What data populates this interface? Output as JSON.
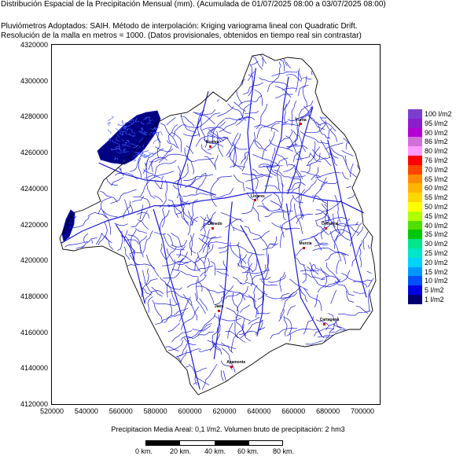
{
  "header": {
    "line1": "Distribución Espacial de la Precipitación Mensual (mm). (Acumulada de 01/07/2025 08:00 a 03/07/2025 08:00)",
    "line2": "Pluviómetros Adoptados: SAIH.  Método de interpolación: Kriging variograma lineal con Quadratic Drift.",
    "line3": "Resolución de la malla en metros = 1000. (Datos provisionales, obtenidos en tiempo real sin contrastar)"
  },
  "axes": {
    "y_ticks": [
      "4320000",
      "4300000",
      "4280000",
      "4260000",
      "4240000",
      "4220000",
      "4200000",
      "4180000",
      "4160000",
      "4140000",
      "4120000"
    ],
    "x_ticks": [
      "520000",
      "540000",
      "560000",
      "580000",
      "600000",
      "620000",
      "640000",
      "660000",
      "680000",
      "700000"
    ]
  },
  "cities": [
    {
      "name": "Huelva",
      "x": 612000,
      "y": 4263500
    },
    {
      "name": "Yunta",
      "x": 664000,
      "y": 4276000
    },
    {
      "name": "Linares",
      "x": 638000,
      "y": 4233500
    },
    {
      "name": "Olmedo",
      "x": 613000,
      "y": 4218000
    },
    {
      "name": "Orihuela",
      "x": 679000,
      "y": 4218000
    },
    {
      "name": "Murcia",
      "x": 666000,
      "y": 4207000
    },
    {
      "name": "Jaén",
      "x": 617000,
      "y": 4172000
    },
    {
      "name": "Cartagena",
      "x": 678000,
      "y": 4164500
    },
    {
      "name": "Ayamonte",
      "x": 624000,
      "y": 4141000
    }
  ],
  "legend": [
    {
      "label": "100 l/m2",
      "color": "#7a3ecf"
    },
    {
      "label": "95 l/m2",
      "color": "#8a1ecc"
    },
    {
      "label": "90 l/m2",
      "color": "#b400d2"
    },
    {
      "label": "86 l/m2",
      "color": "#d070d8"
    },
    {
      "label": "80 l/m2",
      "color": "#ff99ff"
    },
    {
      "label": "76 l/m2",
      "color": "#ff0000"
    },
    {
      "label": "70 l/m2",
      "color": "#ff4500"
    },
    {
      "label": "65 l/m2",
      "color": "#ff8c00"
    },
    {
      "label": "60 l/m2",
      "color": "#ffb400"
    },
    {
      "label": "55 l/m2",
      "color": "#ffd700"
    },
    {
      "label": "50 l/m2",
      "color": "#ffff00"
    },
    {
      "label": "45 l/m2",
      "color": "#b0ff00"
    },
    {
      "label": "40 l/m2",
      "color": "#50e000"
    },
    {
      "label": "35 l/m2",
      "color": "#00c800"
    },
    {
      "label": "30 l/m2",
      "color": "#00e68c"
    },
    {
      "label": "25 l/m2",
      "color": "#00e6c8"
    },
    {
      "label": "20 l/m2",
      "color": "#00d2ff"
    },
    {
      "label": "15 l/m2",
      "color": "#0096ff"
    },
    {
      "label": "10 l/m2",
      "color": "#0050ff"
    },
    {
      "label": "5 l/m2",
      "color": "#0000e0"
    },
    {
      "label": "1 l/m2",
      "color": "#000070"
    }
  ],
  "footer": "Precipitacion Media Areal: 0,1 l/m2. Volumen bruto de precipitación: 2 hm3",
  "scalebar": {
    "labels": [
      "0 km.",
      "20 km.",
      "40 km.",
      "60 km.",
      "80 km."
    ]
  },
  "colors": {
    "rivers": "#1a1ad6",
    "rain_high": "#000080",
    "rain_edge": "#1010c0",
    "border": "#000000"
  }
}
